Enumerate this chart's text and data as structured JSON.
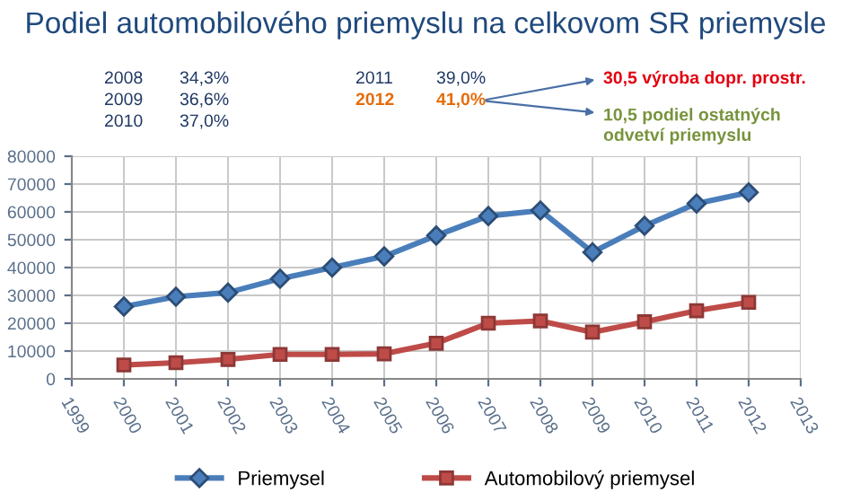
{
  "chart_data": {
    "type": "line",
    "title": "Podiel automobilového priemyslu na celkovom SR priemysle",
    "annotations": [
      "2008",
      "34,3%",
      "2009",
      "36,6%",
      "2010",
      "37,0%",
      "2011",
      "39,0%",
      "2012",
      "41,0%",
      "30,5 výroba dopr. prostr.",
      "10,5 podiel ostatných\nodvetví priemyslu"
    ],
    "x": [
      2000,
      2001,
      2002,
      2003,
      2004,
      2005,
      2006,
      2007,
      2008,
      2009,
      2010,
      2011,
      2012
    ],
    "series": [
      {
        "name": "Priemysel",
        "color": "#4a7ebb",
        "marker": "diamond",
        "values": [
          26000,
          29500,
          31000,
          36000,
          40000,
          44000,
          51500,
          58500,
          60500,
          45500,
          55000,
          63000,
          67000
        ]
      },
      {
        "name": "Automobilový priemysel",
        "color": "#be4b48",
        "marker": "square",
        "values": [
          5000,
          5800,
          7000,
          8800,
          8800,
          9000,
          12800,
          20000,
          20800,
          16800,
          20500,
          24500,
          27500
        ]
      }
    ],
    "xlim": [
      1999,
      2013
    ],
    "xticks": [
      1999,
      2000,
      2001,
      2002,
      2003,
      2004,
      2005,
      2006,
      2007,
      2008,
      2009,
      2010,
      2011,
      2012,
      2013
    ],
    "ylim": [
      0,
      80000
    ],
    "yticks": [
      0,
      10000,
      20000,
      30000,
      40000,
      50000,
      60000,
      70000,
      80000
    ],
    "grid": true,
    "legend": "bottom",
    "line_style": "solid"
  }
}
